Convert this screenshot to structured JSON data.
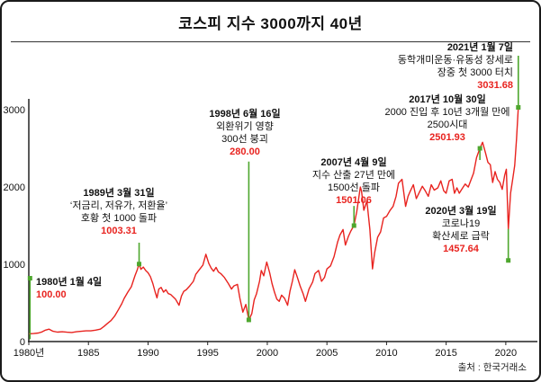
{
  "title": "코스피 지수 3000까지 40년",
  "source": "출처 : 한국거래소",
  "chart_data": {
    "type": "line",
    "title": "코스피 지수 3000까지 40년",
    "series_name": "KOSPI index",
    "x_range": [
      1980,
      2022.5
    ],
    "y_range": [
      0,
      3700
    ],
    "grid": false,
    "line_color": "#e8231f",
    "accent_green": "#4ea72e",
    "axis_color": "#222222",
    "x_ticks": [
      {
        "year": 1980,
        "label": "1980년"
      },
      {
        "year": 1985,
        "label": "1985"
      },
      {
        "year": 1990,
        "label": "1990"
      },
      {
        "year": 1995,
        "label": "1995"
      },
      {
        "year": 2000,
        "label": "2000"
      },
      {
        "year": 2005,
        "label": "2005"
      },
      {
        "year": 2010,
        "label": "2010"
      },
      {
        "year": 2015,
        "label": "2015"
      },
      {
        "year": 2020,
        "label": "2020"
      }
    ],
    "y_ticks": [
      {
        "value": 0,
        "label": "0"
      },
      {
        "value": 1000,
        "label": "1000"
      },
      {
        "value": 2000,
        "label": "2000"
      },
      {
        "value": 3000,
        "label": "3000"
      }
    ],
    "points": [
      [
        1980.0,
        100
      ],
      [
        1980.4,
        104
      ],
      [
        1980.8,
        110
      ],
      [
        1981.1,
        125
      ],
      [
        1981.4,
        148
      ],
      [
        1981.7,
        160
      ],
      [
        1982.0,
        135
      ],
      [
        1982.4,
        122
      ],
      [
        1982.8,
        127
      ],
      [
        1983.2,
        121
      ],
      [
        1983.6,
        118
      ],
      [
        1984.0,
        127
      ],
      [
        1984.4,
        133
      ],
      [
        1984.8,
        139
      ],
      [
        1985.2,
        138
      ],
      [
        1985.6,
        148
      ],
      [
        1986.0,
        161
      ],
      [
        1986.3,
        195
      ],
      [
        1986.6,
        235
      ],
      [
        1986.9,
        272
      ],
      [
        1987.2,
        330
      ],
      [
        1987.5,
        410
      ],
      [
        1987.8,
        490
      ],
      [
        1988.0,
        560
      ],
      [
        1988.3,
        640
      ],
      [
        1988.6,
        710
      ],
      [
        1988.9,
        850
      ],
      [
        1989.1,
        930
      ],
      [
        1989.25,
        1003
      ],
      [
        1989.4,
        935
      ],
      [
        1989.6,
        965
      ],
      [
        1989.8,
        920
      ],
      [
        1990.0,
        890
      ],
      [
        1990.2,
        840
      ],
      [
        1990.4,
        750
      ],
      [
        1990.6,
        640
      ],
      [
        1990.75,
        566
      ],
      [
        1990.9,
        680
      ],
      [
        1991.1,
        700
      ],
      [
        1991.3,
        640
      ],
      [
        1991.5,
        670
      ],
      [
        1991.7,
        620
      ],
      [
        1991.9,
        610
      ],
      [
        1992.1,
        580
      ],
      [
        1992.3,
        550
      ],
      [
        1992.6,
        470
      ],
      [
        1992.8,
        590
      ],
      [
        1993.0,
        650
      ],
      [
        1993.2,
        670
      ],
      [
        1993.5,
        720
      ],
      [
        1993.8,
        780
      ],
      [
        1994.0,
        870
      ],
      [
        1994.3,
        930
      ],
      [
        1994.6,
        990
      ],
      [
        1994.85,
        1130
      ],
      [
        1995.1,
        1010
      ],
      [
        1995.3,
        950
      ],
      [
        1995.5,
        910
      ],
      [
        1995.7,
        960
      ],
      [
        1995.9,
        900
      ],
      [
        1996.1,
        880
      ],
      [
        1996.4,
        830
      ],
      [
        1996.7,
        760
      ],
      [
        1997.0,
        680
      ],
      [
        1997.2,
        720
      ],
      [
        1997.5,
        740
      ],
      [
        1997.7,
        560
      ],
      [
        1997.95,
        380
      ],
      [
        1998.2,
        480
      ],
      [
        1998.45,
        280
      ],
      [
        1998.7,
        360
      ],
      [
        1998.9,
        540
      ],
      [
        1999.1,
        620
      ],
      [
        1999.35,
        780
      ],
      [
        1999.5,
        920
      ],
      [
        1999.7,
        850
      ],
      [
        1999.95,
        1028
      ],
      [
        2000.2,
        890
      ],
      [
        2000.4,
        750
      ],
      [
        2000.6,
        640
      ],
      [
        2000.8,
        550
      ],
      [
        2001.0,
        520
      ],
      [
        2001.2,
        600
      ],
      [
        2001.45,
        560
      ],
      [
        2001.7,
        470
      ],
      [
        2001.9,
        650
      ],
      [
        2002.1,
        780
      ],
      [
        2002.3,
        930
      ],
      [
        2002.5,
        840
      ],
      [
        2002.75,
        720
      ],
      [
        2003.0,
        620
      ],
      [
        2003.2,
        520
      ],
      [
        2003.5,
        680
      ],
      [
        2003.8,
        770
      ],
      [
        2004.0,
        880
      ],
      [
        2004.3,
        920
      ],
      [
        2004.55,
        780
      ],
      [
        2004.8,
        830
      ],
      [
        2005.0,
        940
      ],
      [
        2005.3,
        980
      ],
      [
        2005.6,
        1100
      ],
      [
        2005.9,
        1290
      ],
      [
        2006.1,
        1380
      ],
      [
        2006.35,
        1450
      ],
      [
        2006.55,
        1250
      ],
      [
        2006.8,
        1360
      ],
      [
        2007.0,
        1430
      ],
      [
        2007.27,
        1501
      ],
      [
        2007.5,
        1680
      ],
      [
        2007.8,
        2000
      ],
      [
        2007.9,
        1950
      ],
      [
        2008.1,
        1700
      ],
      [
        2008.35,
        1820
      ],
      [
        2008.6,
        1450
      ],
      [
        2008.82,
        940
      ],
      [
        2009.0,
        1150
      ],
      [
        2009.25,
        1350
      ],
      [
        2009.5,
        1420
      ],
      [
        2009.75,
        1600
      ],
      [
        2010.0,
        1620
      ],
      [
        2010.3,
        1700
      ],
      [
        2010.55,
        1750
      ],
      [
        2010.8,
        1880
      ],
      [
        2011.0,
        2050
      ],
      [
        2011.3,
        2100
      ],
      [
        2011.6,
        1750
      ],
      [
        2011.8,
        1880
      ],
      [
        2012.0,
        1950
      ],
      [
        2012.25,
        2030
      ],
      [
        2012.5,
        1850
      ],
      [
        2012.75,
        1930
      ],
      [
        2013.0,
        2010
      ],
      [
        2013.25,
        1950
      ],
      [
        2013.5,
        1880
      ],
      [
        2013.75,
        2030
      ],
      [
        2014.0,
        1960
      ],
      [
        2014.3,
        1990
      ],
      [
        2014.55,
        2080
      ],
      [
        2014.8,
        1950
      ],
      [
        2015.0,
        1920
      ],
      [
        2015.25,
        2080
      ],
      [
        2015.5,
        2100
      ],
      [
        2015.7,
        1920
      ],
      [
        2015.9,
        1990
      ],
      [
        2016.1,
        1920
      ],
      [
        2016.35,
        1980
      ],
      [
        2016.6,
        2040
      ],
      [
        2016.85,
        2000
      ],
      [
        2017.05,
        2080
      ],
      [
        2017.3,
        2180
      ],
      [
        2017.55,
        2380
      ],
      [
        2017.83,
        2501
      ],
      [
        2018.05,
        2580
      ],
      [
        2018.3,
        2440
      ],
      [
        2018.5,
        2320
      ],
      [
        2018.7,
        2290
      ],
      [
        2018.9,
        2060
      ],
      [
        2019.1,
        2200
      ],
      [
        2019.3,
        2100
      ],
      [
        2019.5,
        2060
      ],
      [
        2019.7,
        1970
      ],
      [
        2019.9,
        2150
      ],
      [
        2020.05,
        2230
      ],
      [
        2020.21,
        1457
      ],
      [
        2020.4,
        1920
      ],
      [
        2020.6,
        2120
      ],
      [
        2020.75,
        2280
      ],
      [
        2020.9,
        2620
      ],
      [
        2021.05,
        3031
      ]
    ],
    "annotations": [
      {
        "date": "1980년 1월 4일",
        "lines": [],
        "value_label": "100.00",
        "year": 1980.1,
        "value": 30,
        "stem_from": 820,
        "marker": "stem"
      },
      {
        "date": "1989년 3월 31일",
        "lines": [
          "‘저금리, 저유가, 저환율’",
          "호황 첫 1000 돌파"
        ],
        "value_label": "1003.31",
        "year": 1989.25,
        "value": 1003,
        "stem_from": 1280,
        "marker": "point"
      },
      {
        "date": "1998년 6월 16일",
        "lines": [
          "외환위기 영향",
          "300선 붕괴"
        ],
        "value_label": "280.00",
        "year": 1998.45,
        "value": 280,
        "stem_from": 2330,
        "marker": "point"
      },
      {
        "date": "2007년 4월 9일",
        "lines": [
          "지수 산출 27년 만에",
          "1500선 돌파"
        ],
        "value_label": "1501.06",
        "year": 2007.27,
        "value": 1501,
        "stem_from": 1755,
        "marker": "point"
      },
      {
        "date": "2017년 10월 30일",
        "lines": [
          "2000 진입 후 10년 3개월 만에",
          "2500시대"
        ],
        "value_label": "2501.93",
        "year": 2017.83,
        "value": 2501,
        "stem_from": 2350,
        "marker": "point"
      },
      {
        "date": "2020년 3월 19일",
        "lines": [
          "코로나19",
          "확산세로 급락"
        ],
        "value_label": "1457.64",
        "year": 2020.21,
        "value": 1457,
        "stem_from": 1050,
        "marker": "stem"
      },
      {
        "date": "2021년 1월 7일",
        "lines": [
          "동학개미운동·유동성 장세로",
          "장중 첫 3000 터치"
        ],
        "value_label": "3031.68",
        "year": 2021.05,
        "value": 3031,
        "stem_from": 3700,
        "marker": "point"
      }
    ]
  }
}
